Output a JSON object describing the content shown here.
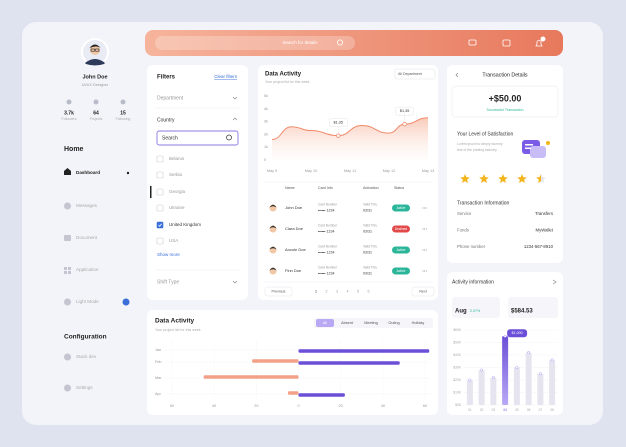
{
  "sidebar": {
    "name": "John Doe",
    "role": "UI/UX Designer",
    "stats": [
      {
        "value": "3.7k",
        "label": "Followers"
      },
      {
        "value": "64",
        "label": "Projects"
      },
      {
        "value": "15",
        "label": "Following"
      }
    ],
    "home_title": "Home",
    "nav": [
      "Dashboard",
      "Messages",
      "Document",
      "Application",
      "Light Mode"
    ],
    "config_title": "Configuration",
    "config_nav": [
      "Stack dev",
      "Settings"
    ]
  },
  "search": {
    "placeholder": "Search for details"
  },
  "filters": {
    "title": "Filters",
    "clear": "Clear filters",
    "department": "Department",
    "country": "Country",
    "search": "Search",
    "options": [
      {
        "label": "Belarus",
        "checked": false
      },
      {
        "label": "Serbia",
        "checked": false
      },
      {
        "label": "Georgia",
        "checked": false
      },
      {
        "label": "Ukraine",
        "checked": false
      },
      {
        "label": "United Kingdom",
        "checked": true
      },
      {
        "label": "USA",
        "checked": false
      }
    ],
    "show_more": "Show more",
    "shift_type": "Shift Type"
  },
  "table": {
    "headers": [
      "Name",
      "Card Info",
      "Activation",
      "Status"
    ],
    "rows": [
      {
        "name": "John Doe",
        "card_label": "Card Number",
        "card": "•••••• 1234",
        "valid_label": "Valid Thru",
        "valid": "03/31",
        "status": "Active",
        "status_color": "#2bb69a"
      },
      {
        "name": "Clara Doe",
        "card_label": "Card Number",
        "card": "•••••• 1234",
        "valid_label": "Valid Thru",
        "valid": "03/31",
        "status": "Declined",
        "status_color": "#e24a4a"
      },
      {
        "name": "Ancole Doe",
        "card_label": "Card Number",
        "card": "•••••• 1234",
        "valid_label": "Valid Thru",
        "valid": "03/31",
        "status": "Active",
        "status_color": "#2bb69a"
      },
      {
        "name": "Finn Doe",
        "card_label": "Card Number",
        "card": "•••••• 1234",
        "valid_label": "Valid Thru",
        "valid": "03/31",
        "status": "Active",
        "status_color": "#2bb69a"
      }
    ]
  },
  "pagination": {
    "previous": "Previous",
    "pages": [
      "1",
      "2",
      "3",
      "4",
      "5",
      "6"
    ],
    "next": "Next"
  },
  "transaction": {
    "title": "Transaction Details",
    "amount": "+$50.00",
    "status": "Successful Transaction",
    "satisfaction_title": "Your Level of Satisfaction",
    "satisfaction_text": [
      "Lorem ipsum is simply dummy",
      "text of the printing industry"
    ],
    "rating": 4.5,
    "info_title": "Transaction Information",
    "info": [
      {
        "label": "Service",
        "value": "Transfers"
      },
      {
        "label": "Funds",
        "value": "MyWallet"
      },
      {
        "label": "Phone number",
        "value": "1234-567-8910"
      }
    ]
  },
  "activity_info": {
    "month": "Aug",
    "change": "2.07%",
    "amount": "$584.53"
  },
  "chart_data": [
    {
      "type": "line",
      "title": "Data Activity",
      "subtitle": "Your project list for this week",
      "dropdown": "All Department",
      "x": [
        9,
        9.5,
        10,
        10.7,
        11.3,
        12,
        12.4,
        13
      ],
      "series": [
        {
          "color": "#f08a6a",
          "values": [
            1.6,
            2.6,
            2.3,
            1.9,
            2.7,
            2.1,
            2.8,
            3.3
          ]
        }
      ],
      "annotations": [
        "$1,35",
        "$1,35"
      ],
      "xlim": [
        9,
        13
      ],
      "xticks": [
        {
          "value": 9,
          "label": "May 9"
        },
        {
          "value": 10,
          "label": "May 10"
        },
        {
          "value": 11,
          "label": "May 11"
        },
        {
          "value": 12,
          "label": "May 12"
        },
        {
          "value": 13,
          "label": "May 13"
        }
      ],
      "ylim": [
        0,
        5
      ],
      "yticks": [
        {
          "value": 5,
          "label": "5k"
        },
        {
          "value": 4,
          "label": "4k"
        },
        {
          "value": 3,
          "label": "3k"
        },
        {
          "value": 2,
          "label": "2k"
        },
        {
          "value": 1,
          "label": "1k"
        },
        0
      ]
    },
    {
      "type": "bar",
      "title": "Activity information",
      "categories": [
        "01",
        "02",
        "03",
        "04",
        "05",
        "06",
        "07",
        "08"
      ],
      "values": [
        20,
        28,
        22,
        55,
        30,
        42,
        25,
        36
      ],
      "colors": [
        "#e6e4ef",
        "#e6e4ef",
        "#e6e4ef",
        "#6b4fd8",
        "#e6e4ef",
        "#e6e4ef",
        "#e6e4ef",
        "#e6e4ef"
      ],
      "annotation": "$1,000",
      "ylim": [
        0,
        60
      ],
      "yticks": [
        {
          "value": 60,
          "label": "$60K"
        },
        {
          "value": 50,
          "label": "$50K"
        },
        {
          "value": 40,
          "label": "$40K"
        },
        {
          "value": 30,
          "label": "$30K"
        },
        {
          "value": 20,
          "label": "$20K"
        },
        {
          "value": 10,
          "label": "$10K"
        },
        {
          "value": 0,
          "label": "$0K"
        }
      ]
    },
    {
      "type": "hbar",
      "title": "Data Activity",
      "subtitle": "Your project list for this week",
      "tabs": [
        "All",
        "Absent",
        "Meeting",
        "Outing",
        "Holiday"
      ],
      "categories": [
        "Jan",
        "Feb",
        "Mar",
        "Apr"
      ],
      "series": [
        {
          "color": "#f08a6a",
          "values": [
            null,
            -22,
            -45,
            -5
          ]
        },
        {
          "color": "#6b4fd8",
          "values": [
            62,
            48,
            null,
            22
          ]
        }
      ],
      "xlim": [
        -60,
        60
      ],
      "xticks": [
        {
          "value": -60,
          "label": "60"
        },
        {
          "value": -40,
          "label": "40"
        },
        {
          "value": -20,
          "label": "20"
        },
        0,
        20,
        40,
        60
      ]
    }
  ]
}
